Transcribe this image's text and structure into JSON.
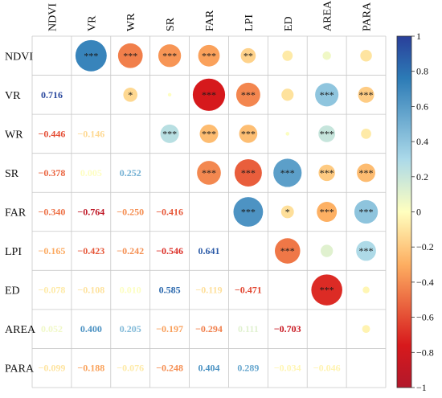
{
  "chart_data": {
    "type": "heatmap",
    "subtype": "correlation-matrix",
    "title": "",
    "variables": [
      "NDVI",
      "VR",
      "WR",
      "SR",
      "FAR",
      "LPI",
      "ED",
      "AREA",
      "PARA"
    ],
    "lower_triangle_correlations": [
      [
        null,
        null,
        null,
        null,
        null,
        null,
        null,
        null,
        null
      ],
      [
        0.716,
        null,
        null,
        null,
        null,
        null,
        null,
        null,
        null
      ],
      [
        -0.446,
        -0.146,
        null,
        null,
        null,
        null,
        null,
        null,
        null
      ],
      [
        -0.378,
        0.005,
        0.252,
        null,
        null,
        null,
        null,
        null,
        null
      ],
      [
        -0.34,
        -0.764,
        -0.25,
        -0.416,
        null,
        null,
        null,
        null,
        null
      ],
      [
        -0.165,
        -0.423,
        -0.242,
        -0.546,
        0.641,
        null,
        null,
        null,
        null
      ],
      [
        -0.078,
        -0.108,
        0.01,
        0.585,
        -0.119,
        -0.471,
        null,
        null,
        null
      ],
      [
        0.052,
        0.4,
        0.205,
        -0.197,
        -0.294,
        0.111,
        -0.703,
        null,
        null
      ],
      [
        -0.099,
        -0.188,
        -0.076,
        -0.248,
        0.404,
        0.289,
        -0.034,
        -0.046,
        null
      ]
    ],
    "significance": [
      [
        "",
        "***",
        "***",
        "***",
        "***",
        "**",
        "",
        "",
        ""
      ],
      [
        "",
        "",
        "*",
        "",
        "***",
        "***",
        "",
        "***",
        "***"
      ],
      [
        "",
        "",
        "",
        "***",
        "***",
        "***",
        "",
        "***",
        ""
      ],
      [
        "",
        "",
        "",
        "",
        "***",
        "***",
        "***",
        "***",
        "***"
      ],
      [
        "",
        "",
        "",
        "",
        "",
        "***",
        "*",
        "***",
        "***"
      ],
      [
        "",
        "",
        "",
        "",
        "",
        "",
        "***",
        "",
        "***"
      ],
      [
        "",
        "",
        "",
        "",
        "",
        "",
        "",
        "***",
        ""
      ],
      [
        "",
        "",
        "",
        "",
        "",
        "",
        "",
        "",
        ""
      ],
      [
        "",
        "",
        "",
        "",
        "",
        "",
        "",
        "",
        ""
      ]
    ],
    "upper_display": "circles sized and colored by correlation magnitude",
    "lower_display": "numeric correlation values colored by sign and magnitude",
    "colorbar": {
      "range": [
        -1,
        1
      ],
      "ticks": [
        "1",
        "0.8",
        "0.6",
        "0.4",
        "0.2",
        "0",
        "−0.2",
        "−0.4",
        "−0.6",
        "−0.8",
        "−1"
      ],
      "colors_top_to_bottom": [
        "#2a3f9a",
        "#2c7bb6",
        "#abd9e9",
        "#ffffbf",
        "#fdae61",
        "#d7191c",
        "#b2182b"
      ]
    },
    "grid": true
  }
}
